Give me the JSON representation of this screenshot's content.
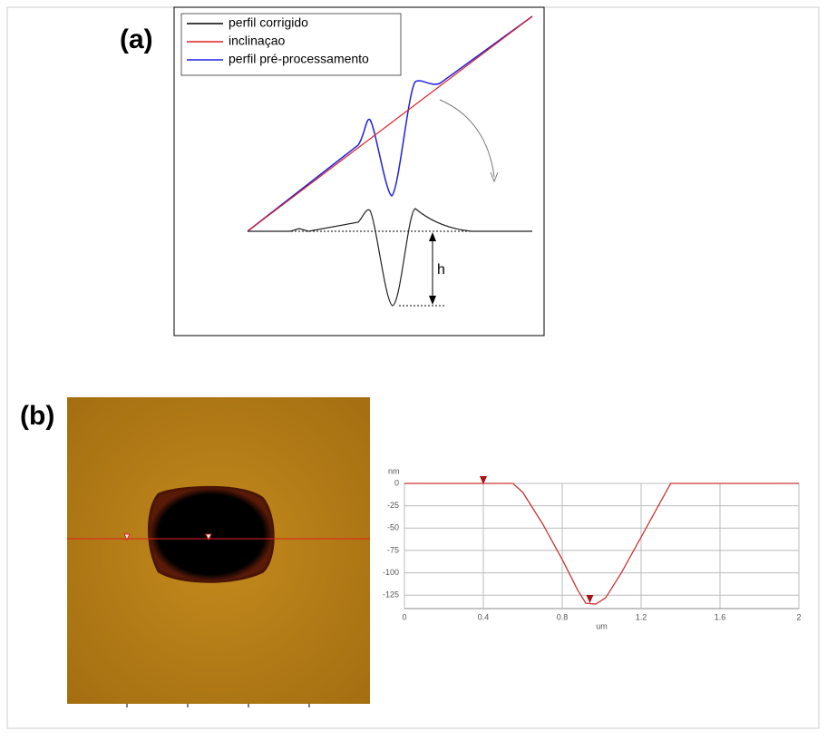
{
  "panel_a": {
    "label": "(a)",
    "legend": [
      {
        "name": "perfil corrigido",
        "color": "#000000"
      },
      {
        "name": "inclinaçao",
        "color": "#e02020"
      },
      {
        "name": "perfil pré-processamento",
        "color": "#2020e0"
      }
    ],
    "annotation": "h"
  },
  "panel_b": {
    "label": "(b)"
  },
  "chart_data": {
    "type": "line",
    "xlabel": "um",
    "ylabel": "nm",
    "x": [
      0,
      0.55,
      0.6,
      0.7,
      0.8,
      0.88,
      0.92,
      0.97,
      1.02,
      1.1,
      1.2,
      1.3,
      1.35,
      2
    ],
    "series": [
      {
        "color": "#cc3333",
        "values": [
          0,
          0,
          -10,
          -45,
          -85,
          -120,
          -134,
          -135,
          -128,
          -100,
          -60,
          -20,
          0,
          0
        ]
      }
    ],
    "xlim": [
      0,
      2
    ],
    "xticks": [
      0,
      0.4,
      0.8,
      1.2,
      1.6,
      2
    ],
    "ylim": [
      -140,
      0
    ],
    "yticks": [
      0,
      -25,
      -50,
      -75,
      -100,
      -125
    ],
    "grid": true
  }
}
